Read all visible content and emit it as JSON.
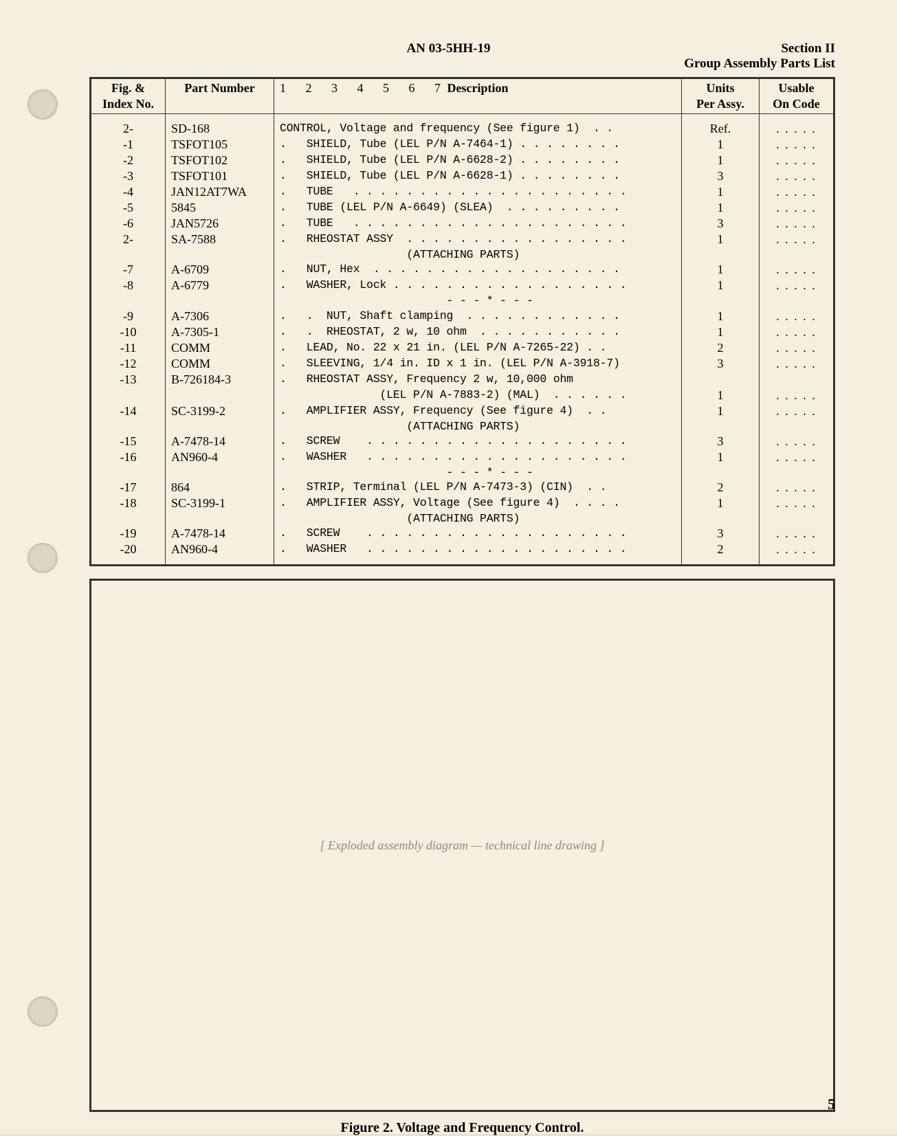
{
  "header": {
    "doc_number": "AN 03-5HH-19",
    "section_line1": "Section II",
    "section_line2": "Group Assembly Parts List"
  },
  "table": {
    "columns": {
      "fig_index": "Fig. &\nIndex No.",
      "part_number": "Part Number",
      "description": "Description",
      "desc_indents": "1  2  3  4  5  6  7",
      "units": "Units\nPer Assy.",
      "code": "Usable\nOn Code"
    },
    "rows": [
      {
        "idx": "2-",
        "pn": "SD-168",
        "desc": "CONTROL, Voltage and frequency (See figure 1)  . .",
        "units": "Ref.",
        "code": ". . . . ."
      },
      {
        "idx": "-1",
        "pn": "TSFOT105",
        "desc": ".   SHIELD, Tube (LEL P/N A-7464-1) . . . . . . . .",
        "units": "1",
        "code": ". . . . ."
      },
      {
        "idx": "-2",
        "pn": "TSFOT102",
        "desc": ".   SHIELD, Tube (LEL P/N A-6628-2) . . . . . . . .",
        "units": "1",
        "code": ". . . . ."
      },
      {
        "idx": "-3",
        "pn": "TSFOT101",
        "desc": ".   SHIELD, Tube (LEL P/N A-6628-1) . . . . . . . .",
        "units": "3",
        "code": ". . . . ."
      },
      {
        "idx": "-4",
        "pn": "JAN12AT7WA",
        "desc": ".   TUBE   . . . . . . . . . . . . . . . . . . . . .",
        "units": "1",
        "code": ". . . . ."
      },
      {
        "idx": "-5",
        "pn": "5845",
        "desc": ".   TUBE (LEL P/N A-6649) (SLEA)  . . . . . . . . .",
        "units": "1",
        "code": ". . . . ."
      },
      {
        "idx": "-6",
        "pn": "JAN5726",
        "desc": ".   TUBE   . . . . . . . . . . . . . . . . . . . . .",
        "units": "3",
        "code": ". . . . ."
      },
      {
        "idx": "2-",
        "pn": "SA-7588",
        "desc": ".   RHEOSTAT ASSY  . . . . . . . . . . . . . . . . .",
        "units": "1",
        "code": ". . . . ."
      },
      {
        "idx": "",
        "pn": "",
        "desc": "                   (ATTACHING PARTS)",
        "units": "",
        "code": ""
      },
      {
        "idx": "-7",
        "pn": "A-6709",
        "desc": ".   NUT, Hex  . . . . . . . . . . . . . . . . . . .",
        "units": "1",
        "code": ". . . . ."
      },
      {
        "idx": "-8",
        "pn": "A-6779",
        "desc": ".   WASHER, Lock . . . . . . . . . . . . . . . . . .",
        "units": "1",
        "code": ". . . . ."
      },
      {
        "idx": "",
        "pn": "",
        "desc": "                         - - - * - - -",
        "units": "",
        "code": ""
      },
      {
        "idx": "-9",
        "pn": "A-7306",
        "desc": ".   .  NUT, Shaft clamping  . . . . . . . . . . . .",
        "units": "1",
        "code": ". . . . ."
      },
      {
        "idx": "-10",
        "pn": "A-7305-1",
        "desc": ".   .  RHEOSTAT, 2 w, 10 ohm  . . . . . . . . . . .",
        "units": "1",
        "code": ". . . . ."
      },
      {
        "idx": "-11",
        "pn": "COMM",
        "desc": ".   LEAD, No. 22 x 21 in. (LEL P/N A-7265-22) . .",
        "units": "2",
        "code": ". . . . ."
      },
      {
        "idx": "-12",
        "pn": "COMM",
        "desc": ".   SLEEVING, 1/4 in. ID x 1 in. (LEL P/N A-3918-7)",
        "units": "3",
        "code": ". . . . ."
      },
      {
        "idx": "-13",
        "pn": "B-726184-3",
        "desc": ".   RHEOSTAT ASSY, Frequency 2 w, 10,000 ohm",
        "units": "",
        "code": ""
      },
      {
        "idx": "",
        "pn": "",
        "desc": "               (LEL P/N A-7883-2) (MAL)  . . . . . .",
        "units": "1",
        "code": ". . . . ."
      },
      {
        "idx": "-14",
        "pn": "SC-3199-2",
        "desc": ".   AMPLIFIER ASSY, Frequency (See figure 4)  . .",
        "units": "1",
        "code": ". . . . ."
      },
      {
        "idx": "",
        "pn": "",
        "desc": "                   (ATTACHING PARTS)",
        "units": "",
        "code": ""
      },
      {
        "idx": "-15",
        "pn": "A-7478-14",
        "desc": ".   SCREW    . . . . . . . . . . . . . . . . . . . .",
        "units": "3",
        "code": ". . . . ."
      },
      {
        "idx": "-16",
        "pn": "AN960-4",
        "desc": ".   WASHER   . . . . . . . . . . . . . . . . . . . .",
        "units": "1",
        "code": ". . . . ."
      },
      {
        "idx": "",
        "pn": "",
        "desc": "                         - - - * - - -",
        "units": "",
        "code": ""
      },
      {
        "idx": "-17",
        "pn": "864",
        "desc": ".   STRIP, Terminal (LEL P/N A-7473-3) (CIN)  . .",
        "units": "2",
        "code": ". . . . ."
      },
      {
        "idx": "-18",
        "pn": "SC-3199-1",
        "desc": ".   AMPLIFIER ASSY, Voltage (See figure 4)  . . . .",
        "units": "1",
        "code": ". . . . ."
      },
      {
        "idx": "",
        "pn": "",
        "desc": "                   (ATTACHING PARTS)",
        "units": "",
        "code": ""
      },
      {
        "idx": "-19",
        "pn": "A-7478-14",
        "desc": ".   SCREW    . . . . . . . . . . . . . . . . . . . .",
        "units": "3",
        "code": ". . . . ."
      },
      {
        "idx": "-20",
        "pn": "AN960-4",
        "desc": ".   WASHER   . . . . . . . . . . . . . . . . . . . .",
        "units": "2",
        "code": ". . . . ."
      }
    ]
  },
  "figure": {
    "caption": "Figure 2.  Voltage and Frequency Control.",
    "placeholder": "[ Exploded assembly diagram — technical line drawing ]"
  },
  "page_number": "5"
}
